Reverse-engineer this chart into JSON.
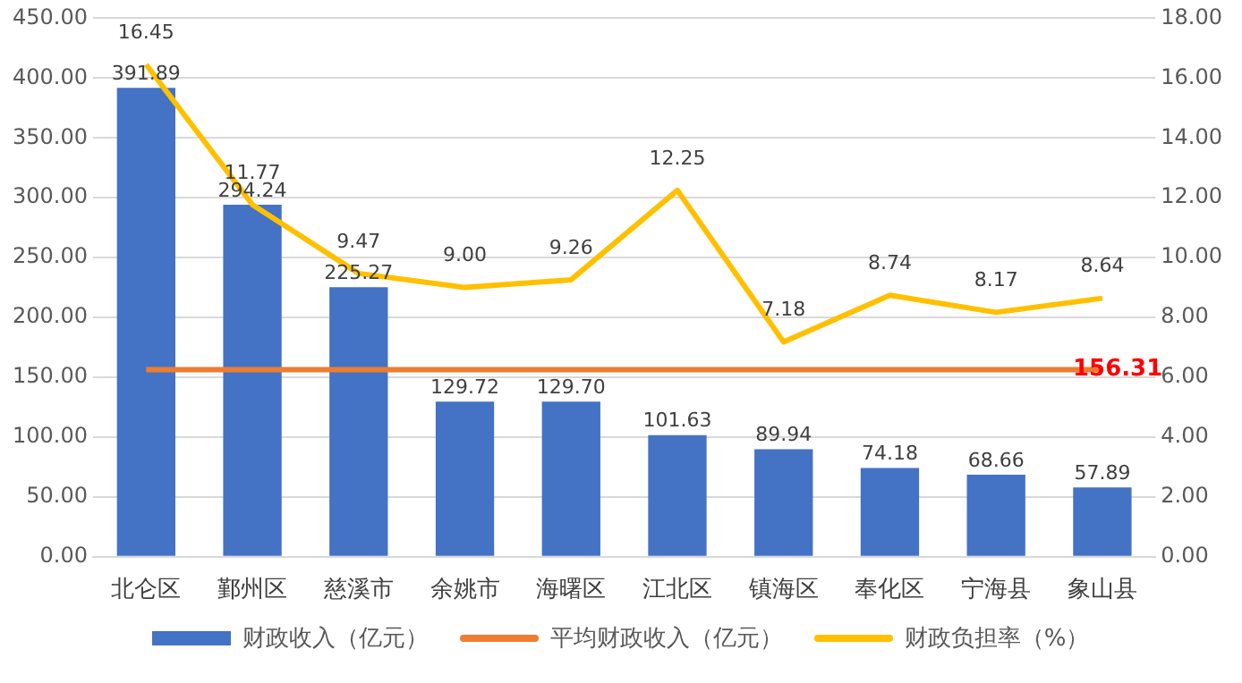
{
  "chart_data": {
    "type": "bar",
    "categories": [
      "北仑区",
      "鄞州区",
      "慈溪市",
      "余姚市",
      "海曙区",
      "江北区",
      "镇海区",
      "奉化区",
      "宁海县",
      "象山县"
    ],
    "series": [
      {
        "name": "财政收入（亿元）",
        "color": "#4472c4",
        "values": [
          391.89,
          294.24,
          225.27,
          129.72,
          129.7,
          101.63,
          89.94,
          74.18,
          68.66,
          57.89
        ],
        "value_labels": [
          "391.89",
          "294.24",
          "225.27",
          "129.72",
          "129.70",
          "101.63",
          "89.94",
          "74.18",
          "68.66",
          "57.89"
        ]
      },
      {
        "name": "平均财政收入（亿元）",
        "type": "line",
        "color": "#ed7d31",
        "values": [
          156.31,
          156.31,
          156.31,
          156.31,
          156.31,
          156.31,
          156.31,
          156.31,
          156.31,
          156.31
        ],
        "value_labels": [
          null,
          null,
          null,
          null,
          null,
          null,
          null,
          null,
          null,
          "156.31"
        ]
      },
      {
        "name": "财政负担率（%）",
        "type": "line",
        "axis": "y2",
        "color": "#ffc000",
        "values": [
          16.45,
          11.77,
          9.47,
          9.0,
          9.26,
          12.25,
          7.18,
          8.74,
          8.17,
          8.64
        ],
        "value_labels": [
          "16.45",
          "11.77",
          "9.47",
          "9.00",
          "9.26",
          "12.25",
          "7.18",
          "8.74",
          "8.17",
          "8.64"
        ]
      }
    ],
    "ylim": [
      0,
      450
    ],
    "yticks": [
      {
        "value": 0,
        "label": "0.00"
      },
      {
        "value": 50,
        "label": "50.00"
      },
      {
        "value": 100,
        "label": "100.00"
      },
      {
        "value": 150,
        "label": "150.00"
      },
      {
        "value": 200,
        "label": "200.00"
      },
      {
        "value": 250,
        "label": "250.00"
      },
      {
        "value": 300,
        "label": "300.00"
      },
      {
        "value": 350,
        "label": "350.00"
      },
      {
        "value": 400,
        "label": "400.00"
      },
      {
        "value": 450,
        "label": "450.00"
      }
    ],
    "y2lim": [
      0,
      18
    ],
    "y2ticks": [
      {
        "value": 0,
        "label": "0.00"
      },
      {
        "value": 2,
        "label": "2.00"
      },
      {
        "value": 4,
        "label": "4.00"
      },
      {
        "value": 6,
        "label": "6.00"
      },
      {
        "value": 8,
        "label": "8.00"
      },
      {
        "value": 10,
        "label": "10.00"
      },
      {
        "value": 12,
        "label": "12.00"
      },
      {
        "value": 14,
        "label": "14.00"
      },
      {
        "value": 16,
        "label": "16.00"
      },
      {
        "value": 18,
        "label": "18.00"
      }
    ],
    "grid": "y",
    "legend": "bottom",
    "marker": "none",
    "line_style": "solid"
  }
}
